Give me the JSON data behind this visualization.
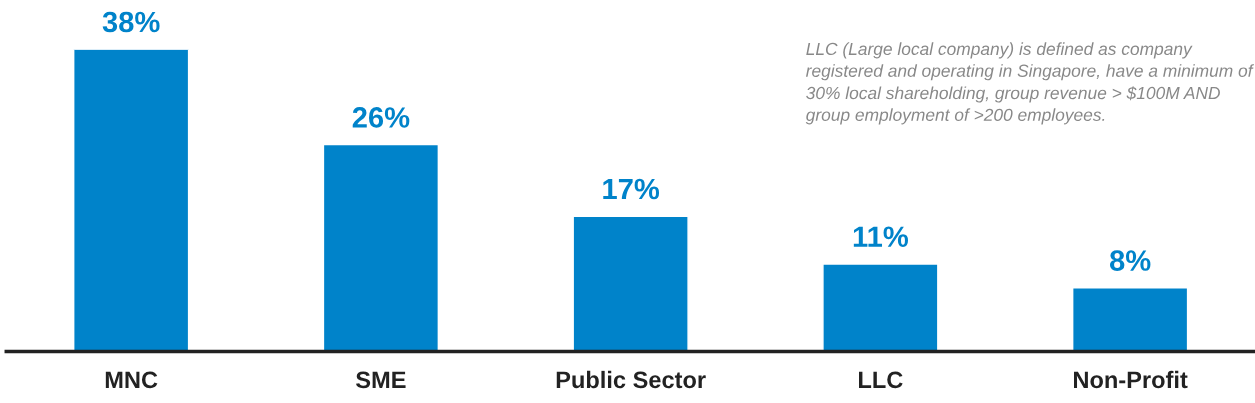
{
  "chart_data": {
    "type": "bar",
    "categories": [
      "MNC",
      "SME",
      "Public Sector",
      "LLC",
      "Non-Profit"
    ],
    "values": [
      38,
      26,
      17,
      11,
      8
    ],
    "color": "#0083ca",
    "data_labels": true,
    "value_labels": [
      "38%",
      "26%",
      "17%",
      "11%",
      "8%"
    ],
    "annotations": [
      "LLC (Large local company) is defined as company registered and operating in Singapore, have a minimum of 30% local shareholding, group revenue > $100M AND group employment of >200 employees."
    ],
    "grid": false,
    "legend": false
  }
}
